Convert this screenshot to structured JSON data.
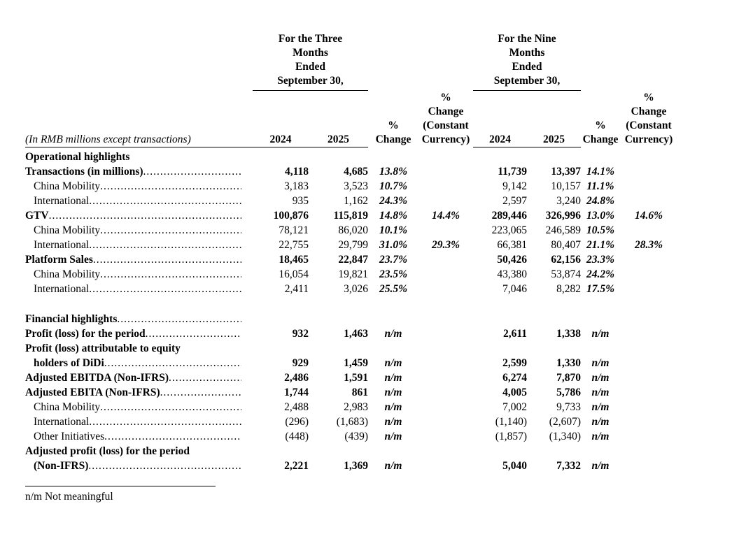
{
  "table": {
    "group_headers": [
      {
        "name": "three-months",
        "lines": [
          "For the Three",
          "Months",
          "Ended",
          "September 30,"
        ]
      },
      {
        "name": "nine-months",
        "lines": [
          "For the Nine",
          "Months",
          "Ended",
          "September 30,"
        ]
      }
    ],
    "column_headers": {
      "label": "(In RMB millions except transactions)",
      "three_months": {
        "y2024": "2024",
        "y2025": "2025",
        "pct_change_lines": [
          "%",
          "Change"
        ],
        "pct_change_cc_lines": [
          "%",
          "Change",
          "(Constant",
          "Currency)"
        ]
      },
      "nine_months": {
        "y2024": "2024",
        "y2025": "2025",
        "pct_change_lines": [
          "%",
          "Change"
        ],
        "pct_change_cc_lines": [
          "%",
          "Change",
          "(Constant",
          "Currency)"
        ]
      }
    },
    "rows": [
      {
        "label": "Operational highlights",
        "bold": true,
        "indent": false,
        "leader": false,
        "values": [
          "",
          "",
          "",
          "",
          "",
          "",
          "",
          ""
        ]
      },
      {
        "label": "Transactions (in millions)",
        "bold": true,
        "indent": false,
        "leader": true,
        "values": [
          "4,118",
          "4,685",
          "13.8%",
          "",
          "11,739",
          "13,397",
          "14.1%",
          ""
        ]
      },
      {
        "label": "China Mobility",
        "bold": false,
        "indent": true,
        "leader": true,
        "values": [
          "3,183",
          "3,523",
          "10.7%",
          "",
          "9,142",
          "10,157",
          "11.1%",
          ""
        ]
      },
      {
        "label": "International",
        "bold": false,
        "indent": true,
        "leader": true,
        "values": [
          "935",
          "1,162",
          "24.3%",
          "",
          "2,597",
          "3,240",
          "24.8%",
          ""
        ]
      },
      {
        "label": "GTV",
        "bold": true,
        "indent": false,
        "leader": true,
        "values": [
          "100,876",
          "115,819",
          "14.8%",
          "14.4%",
          "289,446",
          "326,996",
          "13.0%",
          "14.6%"
        ]
      },
      {
        "label": "China Mobility",
        "bold": false,
        "indent": true,
        "leader": true,
        "values": [
          "78,121",
          "86,020",
          "10.1%",
          "",
          "223,065",
          "246,589",
          "10.5%",
          ""
        ]
      },
      {
        "label": "International",
        "bold": false,
        "indent": true,
        "leader": true,
        "values": [
          "22,755",
          "29,799",
          "31.0%",
          "29.3%",
          "66,381",
          "80,407",
          "21.1%",
          "28.3%"
        ]
      },
      {
        "label": "Platform Sales",
        "bold": true,
        "indent": false,
        "leader": true,
        "values": [
          "18,465",
          "22,847",
          "23.7%",
          "",
          "50,426",
          "62,156",
          "23.3%",
          ""
        ]
      },
      {
        "label": "China Mobility",
        "bold": false,
        "indent": true,
        "leader": true,
        "values": [
          "16,054",
          "19,821",
          "23.5%",
          "",
          "43,380",
          "53,874",
          "24.2%",
          ""
        ]
      },
      {
        "label": "International",
        "bold": false,
        "indent": true,
        "leader": true,
        "values": [
          "2,411",
          "3,026",
          "25.5%",
          "",
          "7,046",
          "8,282",
          "17.5%",
          ""
        ]
      },
      {
        "spacer": true
      },
      {
        "label": "Financial highlights",
        "bold": true,
        "indent": false,
        "leader": true,
        "values": [
          "",
          "",
          "",
          "",
          "",
          "",
          "",
          ""
        ]
      },
      {
        "label": "Profit (loss) for the period",
        "bold": true,
        "indent": false,
        "leader": true,
        "values": [
          "932",
          "1,463",
          "n/m",
          "",
          "2,611",
          "1,338",
          "n/m",
          ""
        ]
      },
      {
        "label_lines": [
          "Profit (loss) attributable to equity",
          "holders of DiDi"
        ],
        "bold": true,
        "indent": false,
        "leader": true,
        "values": [
          "929",
          "1,459",
          "n/m",
          "",
          "2,599",
          "1,330",
          "n/m",
          ""
        ]
      },
      {
        "label": "Adjusted EBITDA (Non-IFRS)",
        "bold": true,
        "indent": false,
        "leader": true,
        "values": [
          "2,486",
          "1,591",
          "n/m",
          "",
          "6,274",
          "7,870",
          "n/m",
          ""
        ]
      },
      {
        "label": "Adjusted EBITA (Non-IFRS)",
        "bold": true,
        "indent": false,
        "leader": true,
        "values": [
          "1,744",
          "861",
          "n/m",
          "",
          "4,005",
          "5,786",
          "n/m",
          ""
        ]
      },
      {
        "label": "China Mobility",
        "bold": false,
        "indent": true,
        "leader": true,
        "values": [
          "2,488",
          "2,983",
          "n/m",
          "",
          "7,002",
          "9,733",
          "n/m",
          ""
        ]
      },
      {
        "label": "International",
        "bold": false,
        "indent": true,
        "leader": true,
        "values": [
          "(296)",
          "(1,683)",
          "n/m",
          "",
          "(1,140)",
          "(2,607)",
          "n/m",
          ""
        ]
      },
      {
        "label": "Other Initiatives",
        "bold": false,
        "indent": true,
        "leader": true,
        "values": [
          "(448)",
          "(439)",
          "n/m",
          "",
          "(1,857)",
          "(1,340)",
          "n/m",
          ""
        ]
      },
      {
        "label_lines": [
          "Adjusted profit (loss) for the period",
          "(Non-IFRS)"
        ],
        "bold": true,
        "indent": false,
        "leader": true,
        "values": [
          "2,221",
          "1,369",
          "n/m",
          "",
          "5,040",
          "7,332",
          "n/m",
          ""
        ]
      }
    ],
    "footnote": "n/m Not meaningful"
  }
}
